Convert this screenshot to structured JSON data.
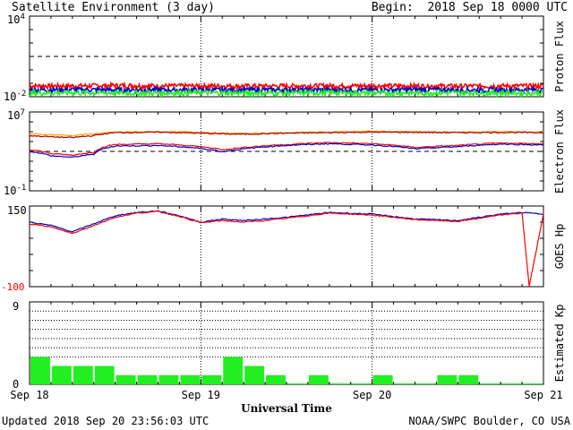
{
  "header": {
    "title": "Satellite Environment (3 day)",
    "begin_label": "Begin:",
    "begin_value": "2018 Sep 18 0000 UTC"
  },
  "footer": {
    "updated": "Updated 2018 Sep 20 23:56:03 UTC",
    "credit": "NOAA/SWPC Boulder, CO USA",
    "xlabel": "Universal Time"
  },
  "colors": {
    "red": "#ff0000",
    "blue": "#0000cc",
    "green": "#22ee22",
    "orange": "#ff9900",
    "darkred": "#aa0000"
  },
  "chart_data": [
    {
      "type": "line",
      "ylabel": "Proton Flux",
      "yscale": "log",
      "ylim": [
        0.01,
        10000
      ],
      "ytick_labels": [
        {
          "base": "10",
          "exp": "4"
        },
        {
          "base": "10",
          "exp": "-2"
        }
      ],
      "threshold": 10,
      "xlim": [
        0,
        72
      ],
      "series": [
        {
          "color": "red",
          "x": [
            0,
            6,
            12,
            18,
            24,
            30,
            36,
            42,
            48,
            54,
            60,
            66,
            72
          ],
          "values": [
            0.06,
            0.06,
            0.065,
            0.06,
            0.06,
            0.058,
            0.06,
            0.062,
            0.06,
            0.06,
            0.058,
            0.06,
            0.06
          ]
        },
        {
          "color": "blue",
          "x": [
            0,
            6,
            12,
            18,
            24,
            30,
            36,
            42,
            48,
            54,
            60,
            66,
            72
          ],
          "values": [
            0.03,
            0.032,
            0.03,
            0.031,
            0.03,
            0.03,
            0.031,
            0.03,
            0.03,
            0.032,
            0.03,
            0.03,
            0.031
          ]
        },
        {
          "color": "green",
          "x": [
            0,
            6,
            12,
            18,
            24,
            30,
            36,
            42,
            48,
            54,
            60,
            66,
            72
          ],
          "values": [
            0.018,
            0.019,
            0.018,
            0.018,
            0.019,
            0.018,
            0.018,
            0.019,
            0.018,
            0.018,
            0.019,
            0.018,
            0.018
          ]
        }
      ]
    },
    {
      "type": "line",
      "ylabel": "Electron Flux",
      "yscale": "log",
      "ylim": [
        0.1,
        10000000
      ],
      "ytick_labels": [
        {
          "base": "10",
          "exp": "7"
        },
        {
          "base": "10",
          "exp": "-1"
        }
      ],
      "threshold": 1000,
      "xlim": [
        0,
        72
      ],
      "series": [
        {
          "color": "orange",
          "x": [
            0,
            3,
            6,
            9,
            12,
            18,
            24,
            27,
            30,
            36,
            42,
            48,
            54,
            60,
            66,
            72
          ],
          "values": [
            60000,
            50000,
            40000,
            60000,
            90000,
            100000,
            90000,
            70000,
            65000,
            80000,
            95000,
            110000,
            100000,
            90000,
            100000,
            90000
          ]
        },
        {
          "color": "darkred",
          "x": [
            0,
            3,
            6,
            9,
            12,
            18,
            24,
            27,
            30,
            36,
            42,
            48,
            54,
            60,
            66,
            72
          ],
          "values": [
            40000,
            30000,
            25000,
            40000,
            80000,
            90000,
            70000,
            60000,
            55000,
            70000,
            80000,
            90000,
            85000,
            80000,
            85000,
            80000
          ]
        },
        {
          "color": "red",
          "x": [
            0,
            3,
            6,
            9,
            12,
            18,
            24,
            27,
            30,
            36,
            42,
            48,
            54,
            60,
            66,
            72
          ],
          "values": [
            1500,
            600,
            400,
            800,
            5000,
            6000,
            3000,
            1500,
            2500,
            5000,
            8000,
            6000,
            2500,
            4000,
            7000,
            6000
          ]
        },
        {
          "color": "blue",
          "x": [
            0,
            3,
            6,
            9,
            12,
            18,
            24,
            27,
            30,
            36,
            42,
            48,
            54,
            60,
            66,
            72
          ],
          "values": [
            1000,
            350,
            250,
            500,
            3500,
            4000,
            2000,
            900,
            1800,
            4000,
            6000,
            4500,
            1800,
            3000,
            5500,
            4500
          ]
        }
      ]
    },
    {
      "type": "line",
      "ylabel": "GOES Hp",
      "ylim": [
        -100,
        150
      ],
      "ytick_labels": [
        "150",
        "-100"
      ],
      "xlim": [
        0,
        72
      ],
      "series": [
        {
          "color": "blue",
          "x": [
            0,
            3,
            6,
            9,
            12,
            15,
            18,
            21,
            24,
            27,
            30,
            33,
            36,
            42,
            48,
            54,
            60,
            66,
            69,
            72
          ],
          "values": [
            100,
            90,
            70,
            95,
            120,
            130,
            135,
            120,
            100,
            110,
            105,
            110,
            115,
            130,
            125,
            110,
            105,
            125,
            130,
            125
          ]
        },
        {
          "color": "red",
          "x": [
            0,
            3,
            6,
            9,
            12,
            15,
            18,
            21,
            24,
            27,
            30,
            33,
            36,
            42,
            48,
            54,
            60,
            66,
            69,
            70,
            72
          ],
          "values": [
            95,
            85,
            65,
            90,
            115,
            128,
            133,
            118,
            98,
            105,
            100,
            105,
            112,
            128,
            122,
            108,
            102,
            122,
            128,
            -100,
            125
          ]
        }
      ]
    },
    {
      "type": "bar",
      "ylabel": "Estimated Kp",
      "ylim": [
        0,
        9
      ],
      "ytick_labels": [
        "9",
        "0"
      ],
      "color": "green",
      "x_start": 0,
      "bin_hours": 3,
      "values": [
        3,
        2,
        2,
        2,
        1,
        1,
        1,
        1,
        1,
        3,
        2,
        1,
        0,
        1,
        0,
        0,
        1,
        0,
        0,
        1,
        1,
        0,
        0,
        0
      ],
      "xtick_labels": [
        "Sep 18",
        "Sep 19",
        "Sep 20",
        "Sep 21"
      ]
    }
  ]
}
